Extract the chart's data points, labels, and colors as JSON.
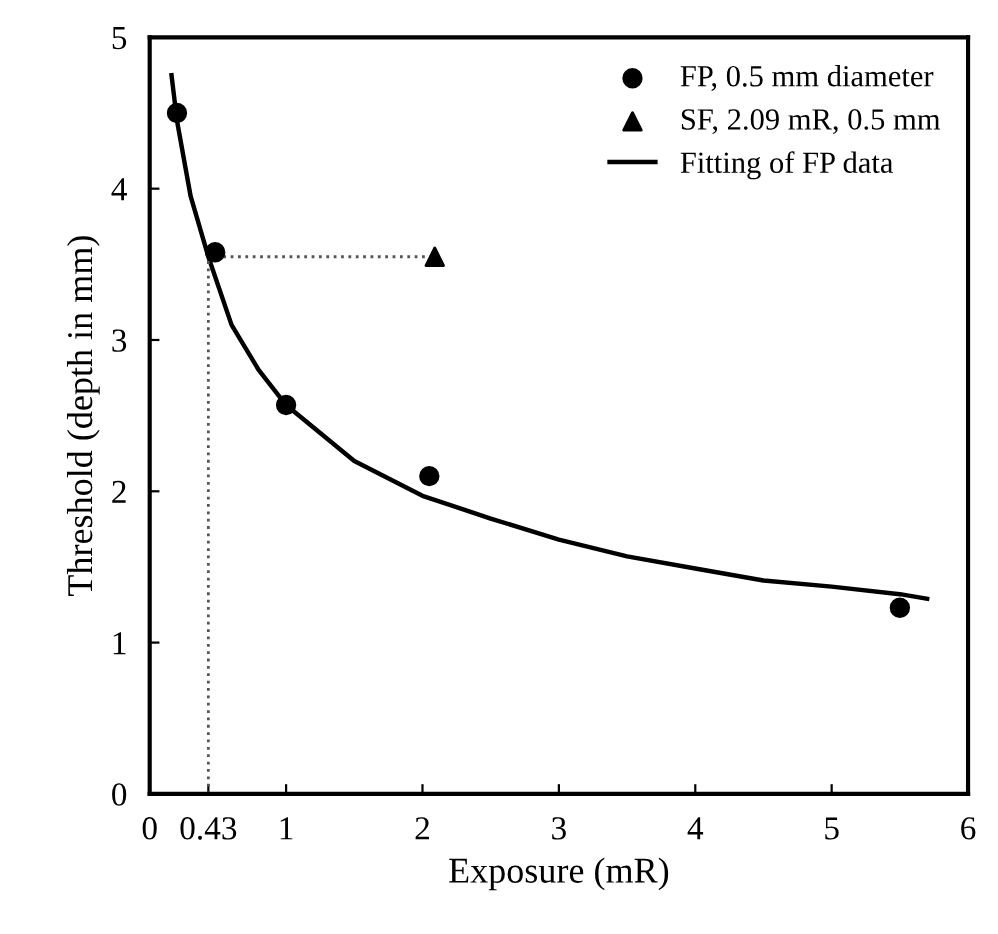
{
  "chart_data": {
    "type": "scatter",
    "xlabel": "Exposure (mR)",
    "ylabel": "Threshold (depth in mm)",
    "xlim": [
      0,
      6
    ],
    "ylim": [
      0,
      5
    ],
    "xticks": [
      0,
      {
        "value": 0.43,
        "label": "0.43"
      },
      1,
      2,
      3,
      4,
      5,
      6
    ],
    "yticks": [
      0,
      1,
      2,
      3,
      4,
      5
    ],
    "grid": false,
    "legend": "top right",
    "series": [
      {
        "name": "FP, 0.5 mm diameter",
        "marker": "circle",
        "color": "#000000",
        "x": [
          0.2,
          0.48,
          1.0,
          2.05,
          5.5
        ],
        "values": [
          4.5,
          3.58,
          2.57,
          2.1,
          1.23
        ]
      },
      {
        "name": "SF, 2.09 mR, 0.5 mm",
        "marker": "triangle",
        "color": "#000000",
        "x": [
          2.09
        ],
        "values": [
          3.55
        ]
      },
      {
        "name": "Fitting of FP data",
        "type": "line",
        "marker": "none",
        "line_style": "solid",
        "color": "#000000",
        "x": [
          0.16,
          0.2,
          0.3,
          0.43,
          0.6,
          0.8,
          1.0,
          1.5,
          2.0,
          2.5,
          3.0,
          3.5,
          4.0,
          4.5,
          5.0,
          5.5,
          5.7
        ],
        "values": [
          4.75,
          4.45,
          3.95,
          3.55,
          3.1,
          2.8,
          2.57,
          2.2,
          1.97,
          1.82,
          1.68,
          1.57,
          1.49,
          1.41,
          1.37,
          1.32,
          1.29
        ]
      },
      {
        "type": "line",
        "marker": "none",
        "line_style": "dotted",
        "color": "#555555",
        "x": [
          0.43,
          0.43,
          2.09
        ],
        "values": [
          0,
          3.55,
          3.55
        ]
      }
    ]
  }
}
